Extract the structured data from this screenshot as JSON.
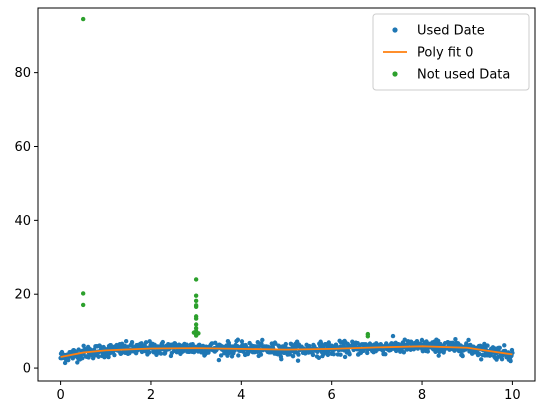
{
  "chart_data": {
    "type": "scatter",
    "xlim": [
      -0.5,
      10.5
    ],
    "ylim": [
      -3.5,
      97.5
    ],
    "x_ticks": [
      0,
      2,
      4,
      6,
      8,
      10
    ],
    "y_ticks": [
      0,
      20,
      40,
      60,
      80
    ],
    "grid": false,
    "legend_position": "top-right",
    "used_data": {
      "name": "Used Date",
      "color": "#1f77b4",
      "marker": "dot",
      "x_range": [
        0,
        10
      ],
      "points_count": 1000,
      "y_center_description": "noisy band around the poly fit, spread about ±1.5",
      "trend": [
        {
          "x": 0.0,
          "y": 3.0
        },
        {
          "x": 0.5,
          "y": 4.2
        },
        {
          "x": 1.0,
          "y": 4.8
        },
        {
          "x": 2.0,
          "y": 5.3
        },
        {
          "x": 3.0,
          "y": 5.4
        },
        {
          "x": 4.0,
          "y": 5.2
        },
        {
          "x": 5.0,
          "y": 5.0
        },
        {
          "x": 6.0,
          "y": 5.2
        },
        {
          "x": 7.0,
          "y": 5.6
        },
        {
          "x": 8.0,
          "y": 5.9
        },
        {
          "x": 9.0,
          "y": 5.5
        },
        {
          "x": 10.0,
          "y": 3.7
        }
      ]
    },
    "poly_fit": {
      "name": "Poly fit 0",
      "color": "#ff7f0e",
      "points": [
        {
          "x": 0.0,
          "y": 3.0
        },
        {
          "x": 0.5,
          "y": 4.2
        },
        {
          "x": 1.0,
          "y": 4.8
        },
        {
          "x": 2.0,
          "y": 5.3
        },
        {
          "x": 3.0,
          "y": 5.4
        },
        {
          "x": 4.0,
          "y": 5.2
        },
        {
          "x": 5.0,
          "y": 5.0
        },
        {
          "x": 6.0,
          "y": 5.2
        },
        {
          "x": 7.0,
          "y": 5.6
        },
        {
          "x": 8.0,
          "y": 5.9
        },
        {
          "x": 9.0,
          "y": 5.5
        },
        {
          "x": 10.0,
          "y": 3.7
        }
      ]
    },
    "not_used_data": {
      "name": "Not used Data",
      "color": "#2ca02c",
      "points": [
        {
          "x": 0.5,
          "y": 94.5
        },
        {
          "x": 0.5,
          "y": 20.2
        },
        {
          "x": 0.5,
          "y": 17.1
        },
        {
          "x": 3.0,
          "y": 24.0
        },
        {
          "x": 3.0,
          "y": 19.6
        },
        {
          "x": 3.0,
          "y": 18.2
        },
        {
          "x": 3.0,
          "y": 17.0
        },
        {
          "x": 3.0,
          "y": 16.6
        },
        {
          "x": 3.0,
          "y": 14.0
        },
        {
          "x": 3.0,
          "y": 13.4
        },
        {
          "x": 3.0,
          "y": 11.8
        },
        {
          "x": 3.0,
          "y": 10.8
        },
        {
          "x": 3.0,
          "y": 10.0
        },
        {
          "x": 3.0,
          "y": 9.3
        },
        {
          "x": 3.0,
          "y": 8.8
        },
        {
          "x": 2.95,
          "y": 9.6
        },
        {
          "x": 3.05,
          "y": 9.4
        },
        {
          "x": 6.8,
          "y": 9.2
        },
        {
          "x": 6.8,
          "y": 8.6
        }
      ]
    }
  }
}
